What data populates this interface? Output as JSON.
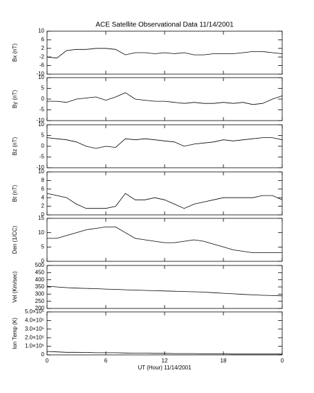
{
  "title": "ACE Satellite Observational Data   11/14/2001",
  "x_axis": {
    "label": "UT (Hour)  11/14/2001",
    "xlim": [
      0,
      24
    ],
    "xticks": [
      0,
      6,
      12,
      18,
      {
        "value": 24,
        "label": "0"
      }
    ],
    "x": [
      0,
      1,
      2,
      3,
      4,
      5,
      6,
      7,
      8,
      9,
      10,
      11,
      12,
      13,
      14,
      15,
      16,
      17,
      18,
      19,
      20,
      21,
      22,
      23,
      24
    ]
  },
  "chart_data": [
    {
      "type": "line",
      "ylabel": "Bx (nT)",
      "ylim": [
        -10,
        10
      ],
      "yticks": [
        -10,
        -6,
        -2,
        2,
        6,
        10
      ],
      "values": [
        -2,
        -2.5,
        1,
        1.5,
        1.5,
        2,
        2,
        1.5,
        -1,
        0,
        0,
        -0.5,
        0,
        -0.5,
        0,
        -1,
        -1,
        -0.5,
        -0.5,
        -0.5,
        0,
        0.5,
        0.5,
        0,
        -0.5
      ]
    },
    {
      "type": "line",
      "ylabel": "By (nT)",
      "ylim": [
        -10,
        10
      ],
      "yticks": [
        -10,
        -5,
        0,
        5,
        10
      ],
      "values": [
        -1,
        -1,
        -1.5,
        0,
        0.5,
        1,
        -0.5,
        1,
        3,
        0,
        -0.5,
        -1,
        -1,
        -1.5,
        -2,
        -1.5,
        -2,
        -2,
        -1.5,
        -2,
        -1.5,
        -2.5,
        -2,
        0,
        1.5
      ]
    },
    {
      "type": "line",
      "ylabel": "Bz (nT)",
      "ylim": [
        -10,
        10
      ],
      "yticks": [
        -10,
        -5,
        0,
        5,
        10
      ],
      "values": [
        4,
        3.5,
        3,
        2,
        0,
        -1,
        0,
        -0.5,
        3.5,
        3,
        3.5,
        3,
        2.5,
        2,
        0,
        1,
        1.5,
        2,
        3,
        2.5,
        3,
        3.5,
        4,
        4,
        3
      ]
    },
    {
      "type": "line",
      "ylabel": "Bt (nT)",
      "ylim": [
        0,
        10
      ],
      "yticks": [
        0,
        2,
        4,
        6,
        8,
        10
      ],
      "values": [
        5,
        4.5,
        4,
        2.5,
        1.5,
        1.5,
        1.5,
        2,
        5,
        3.5,
        3.5,
        4,
        3.5,
        2.5,
        1.5,
        2.5,
        3,
        3.5,
        4,
        4,
        4,
        4,
        4.5,
        4.5,
        3.5
      ]
    },
    {
      "type": "line",
      "ylabel": "Den (1/CC)",
      "ylim": [
        0,
        15
      ],
      "yticks": [
        0,
        5,
        10,
        15
      ],
      "values": [
        8,
        8,
        9,
        10,
        11,
        11.5,
        12,
        12,
        10,
        8,
        7.5,
        7,
        6.5,
        6.5,
        7,
        7.5,
        7,
        6,
        5,
        4,
        3.5,
        3,
        3,
        3,
        3
      ]
    },
    {
      "type": "line",
      "ylabel": "Vel (Km/sec)",
      "ylim": [
        200,
        500
      ],
      "yticks": [
        200,
        250,
        300,
        350,
        400,
        450,
        500
      ],
      "values": [
        355,
        350,
        345,
        342,
        340,
        338,
        335,
        333,
        330,
        328,
        326,
        324,
        322,
        320,
        318,
        316,
        314,
        310,
        306,
        302,
        298,
        295,
        292,
        290,
        288
      ]
    },
    {
      "type": "line",
      "ylabel": "Ion Temp (K)",
      "ylim": [
        0,
        500000
      ],
      "yticks": [
        0,
        {
          "value": 100000,
          "label": "1.0×10⁵"
        },
        {
          "value": 200000,
          "label": "2.0×10⁵"
        },
        {
          "value": 300000,
          "label": "3.0×10⁵"
        },
        {
          "value": 400000,
          "label": "4.0×10⁵"
        },
        {
          "value": 500000,
          "label": "5.0×10⁵"
        }
      ],
      "values": [
        40000,
        35000,
        30000,
        30000,
        28000,
        25000,
        25000,
        25000,
        22000,
        20000,
        20000,
        18000,
        18000,
        15000,
        15000,
        15000,
        12000,
        12000,
        12000,
        10000,
        10000,
        10000,
        10000,
        10000,
        10000
      ]
    }
  ]
}
